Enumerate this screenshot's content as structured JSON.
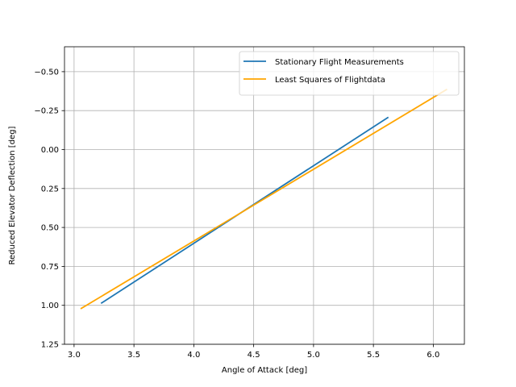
{
  "chart_data": {
    "type": "line",
    "title": "",
    "xlabel": "Angle of Attack [deg]",
    "ylabel": "Reduced Elevator Deflection [deg]",
    "xlim": [
      2.92,
      6.26
    ],
    "ylim": [
      1.25,
      -0.66
    ],
    "y_inverted": true,
    "grid": true,
    "legend_position": "top-right",
    "xticks": [
      3.0,
      3.5,
      4.0,
      4.5,
      5.0,
      5.5,
      6.0
    ],
    "xtick_labels": [
      "3.0",
      "3.5",
      "4.0",
      "4.5",
      "5.0",
      "5.5",
      "6.0"
    ],
    "yticks": [
      -0.5,
      -0.25,
      0.0,
      0.25,
      0.5,
      0.75,
      1.0,
      1.25
    ],
    "ytick_labels": [
      "−0.50",
      "−0.25",
      "0.00",
      "0.25",
      "0.50",
      "0.75",
      "1.00",
      "1.25"
    ],
    "series": [
      {
        "name": "Stationary Flight Measurements",
        "color": "#1f77b4",
        "x": [
          3.23,
          5.62
        ],
        "y": [
          0.985,
          -0.205
        ]
      },
      {
        "name": "Least Squares of Flightdata",
        "color": "#ffa500",
        "x": [
          3.06,
          6.11
        ],
        "y": [
          1.02,
          -0.385
        ]
      }
    ]
  }
}
